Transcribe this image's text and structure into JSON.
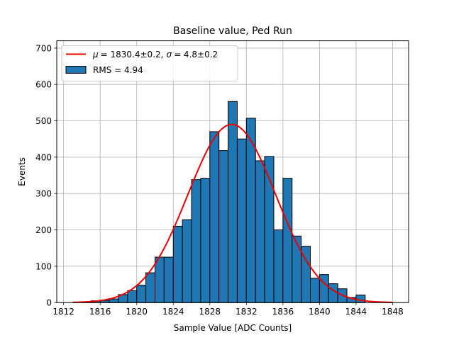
{
  "chart_data": {
    "type": "bar",
    "title": "Baseline value, Ped Run",
    "xlabel": "Sample Value [ADC Counts]",
    "ylabel": "Events",
    "xlim": [
      1811.25,
      1849.75
    ],
    "ylim": [
      0,
      720
    ],
    "xticks": [
      1812,
      1816,
      1820,
      1824,
      1828,
      1832,
      1836,
      1840,
      1844,
      1848
    ],
    "yticks": [
      0,
      100,
      200,
      300,
      400,
      500,
      600,
      700
    ],
    "grid": true,
    "legend_position": "top-left",
    "bin_width": 1.0,
    "bin_edges": [
      1813.0,
      1814.0,
      1815.0,
      1816.0,
      1817.0,
      1818.0,
      1819.0,
      1820.0,
      1821.0,
      1822.0,
      1823.0,
      1824.0,
      1825.0,
      1826.0,
      1827.0,
      1828.0,
      1829.0,
      1830.0,
      1831.0,
      1832.0,
      1833.0,
      1834.0,
      1835.0,
      1836.0,
      1837.0,
      1838.0,
      1839.0,
      1840.0,
      1841.0,
      1842.0,
      1843.0,
      1844.0,
      1845.0,
      1846.0,
      1847.0,
      1848.0
    ],
    "counts": [
      0,
      1,
      5,
      6,
      10,
      22,
      33,
      48,
      82,
      125,
      125,
      210,
      228,
      338,
      342,
      470,
      418,
      553,
      450,
      507,
      390,
      402,
      200,
      342,
      183,
      155,
      67,
      77,
      52,
      38,
      14,
      21,
      0,
      0,
      0
    ],
    "series": [
      {
        "name": "μ = 1830.4±0.2, σ = 4.8±0.2",
        "kind": "line",
        "color": "#ee0000",
        "fit": {
          "function": "gaussian",
          "mu": 1830.4,
          "sigma": 4.8,
          "amplitude": 490
        },
        "x_range": [
          1813,
          1848
        ]
      },
      {
        "name": "RMS = 4.94",
        "kind": "histogram",
        "color": "#1f77b4"
      }
    ]
  },
  "legend": {
    "fit_label": "= 1830.4±0.2,",
    "mu_symbol": "μ",
    "sigma_symbol": "σ",
    "sigma_value": "= 4.8±0.2",
    "hist_label": "RMS = 4.94"
  }
}
